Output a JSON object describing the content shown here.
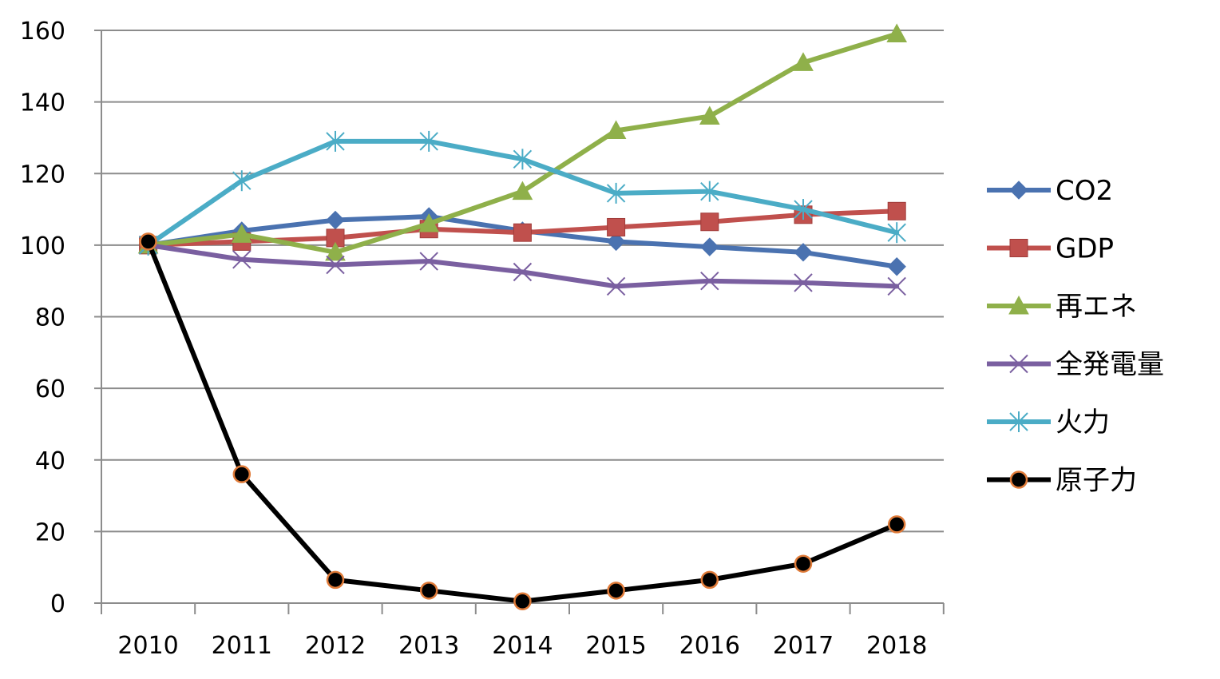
{
  "chart_data": {
    "type": "line",
    "title": "",
    "xlabel": "",
    "ylabel": "",
    "categories": [
      "2010",
      "2011",
      "2012",
      "2013",
      "2014",
      "2015",
      "2016",
      "2017",
      "2018"
    ],
    "ylim": [
      0,
      160
    ],
    "yticks": [
      "0",
      "20",
      "40",
      "60",
      "80",
      "100",
      "120",
      "140",
      "160"
    ],
    "grid": true,
    "legend_position": "right",
    "series": [
      {
        "name": "CO2",
        "color": "#4a72b0",
        "marker": "diamond",
        "values": [
          100,
          104,
          107,
          108,
          104,
          101,
          99.5,
          98,
          94
        ]
      },
      {
        "name": "GDP",
        "color": "#c0504d",
        "marker": "square",
        "values": [
          100,
          101,
          102,
          104.5,
          103.5,
          105,
          106.5,
          108.5,
          109.5
        ]
      },
      {
        "name": "再エネ",
        "color": "#8fb04a",
        "marker": "triangle",
        "values": [
          100,
          103,
          98,
          106,
          115,
          132,
          136,
          151,
          159
        ]
      },
      {
        "name": "全発電量",
        "color": "#7a5fa0",
        "marker": "x",
        "values": [
          100,
          96,
          94.5,
          95.5,
          92.5,
          88.5,
          90,
          89.5,
          88.5
        ]
      },
      {
        "name": "火力",
        "color": "#4bacc6",
        "marker": "asterisk",
        "values": [
          100,
          118,
          129,
          129,
          124,
          114.5,
          115,
          110,
          103.5
        ]
      },
      {
        "name": "原子力",
        "color": "#000000",
        "marker": "circle",
        "values": [
          101,
          36,
          6.5,
          3.5,
          0.5,
          3.5,
          6.5,
          11,
          22
        ]
      }
    ]
  }
}
